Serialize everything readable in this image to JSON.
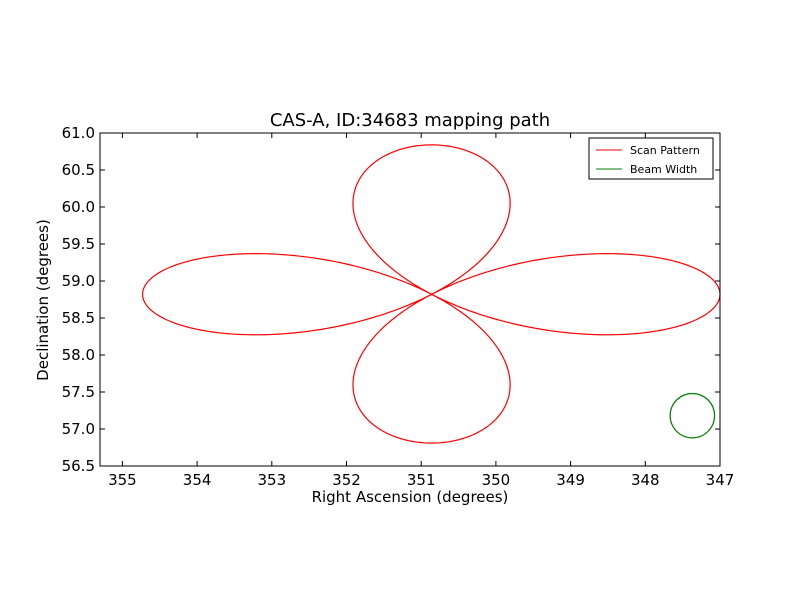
{
  "chart_data": {
    "type": "line",
    "title": "CAS-A, ID:34683 mapping path",
    "xlabel": "Right Ascension (degrees)",
    "ylabel": "Declination (degrees)",
    "xlim": [
      355.3,
      347.0
    ],
    "ylim": [
      56.5,
      61.0
    ],
    "x_inverted": true,
    "x_ticks": [
      "355",
      "354",
      "353",
      "352",
      "351",
      "350",
      "349",
      "348",
      "347"
    ],
    "y_ticks": [
      "56.5",
      "57.0",
      "57.5",
      "58.0",
      "58.5",
      "59.0",
      "59.5",
      "60.0",
      "60.5",
      "61.0"
    ],
    "grid": false,
    "legend_position": "top-right",
    "series": [
      {
        "name": "Scan Pattern",
        "color": "#ff0000",
        "shape": "four-petal rose (quatrefoil) scan",
        "center": [
          350.86,
          58.82
        ],
        "petals": [
          {
            "direction": "east",
            "extent_ra": 354.73,
            "dec_range": [
              58.28,
              59.38
            ]
          },
          {
            "direction": "west",
            "extent_ra": 347.0,
            "dec_range": [
              58.28,
              59.38
            ]
          },
          {
            "direction": "north",
            "extent_dec": 60.84,
            "ra_range": [
              351.8,
              349.9
            ]
          },
          {
            "direction": "south",
            "extent_dec": 56.81,
            "ra_range": [
              351.8,
              349.9
            ]
          }
        ]
      },
      {
        "name": "Beam Width",
        "color": "#008000",
        "shape": "circle",
        "center": [
          347.37,
          57.18
        ],
        "radius_dec": 0.3
      }
    ]
  }
}
